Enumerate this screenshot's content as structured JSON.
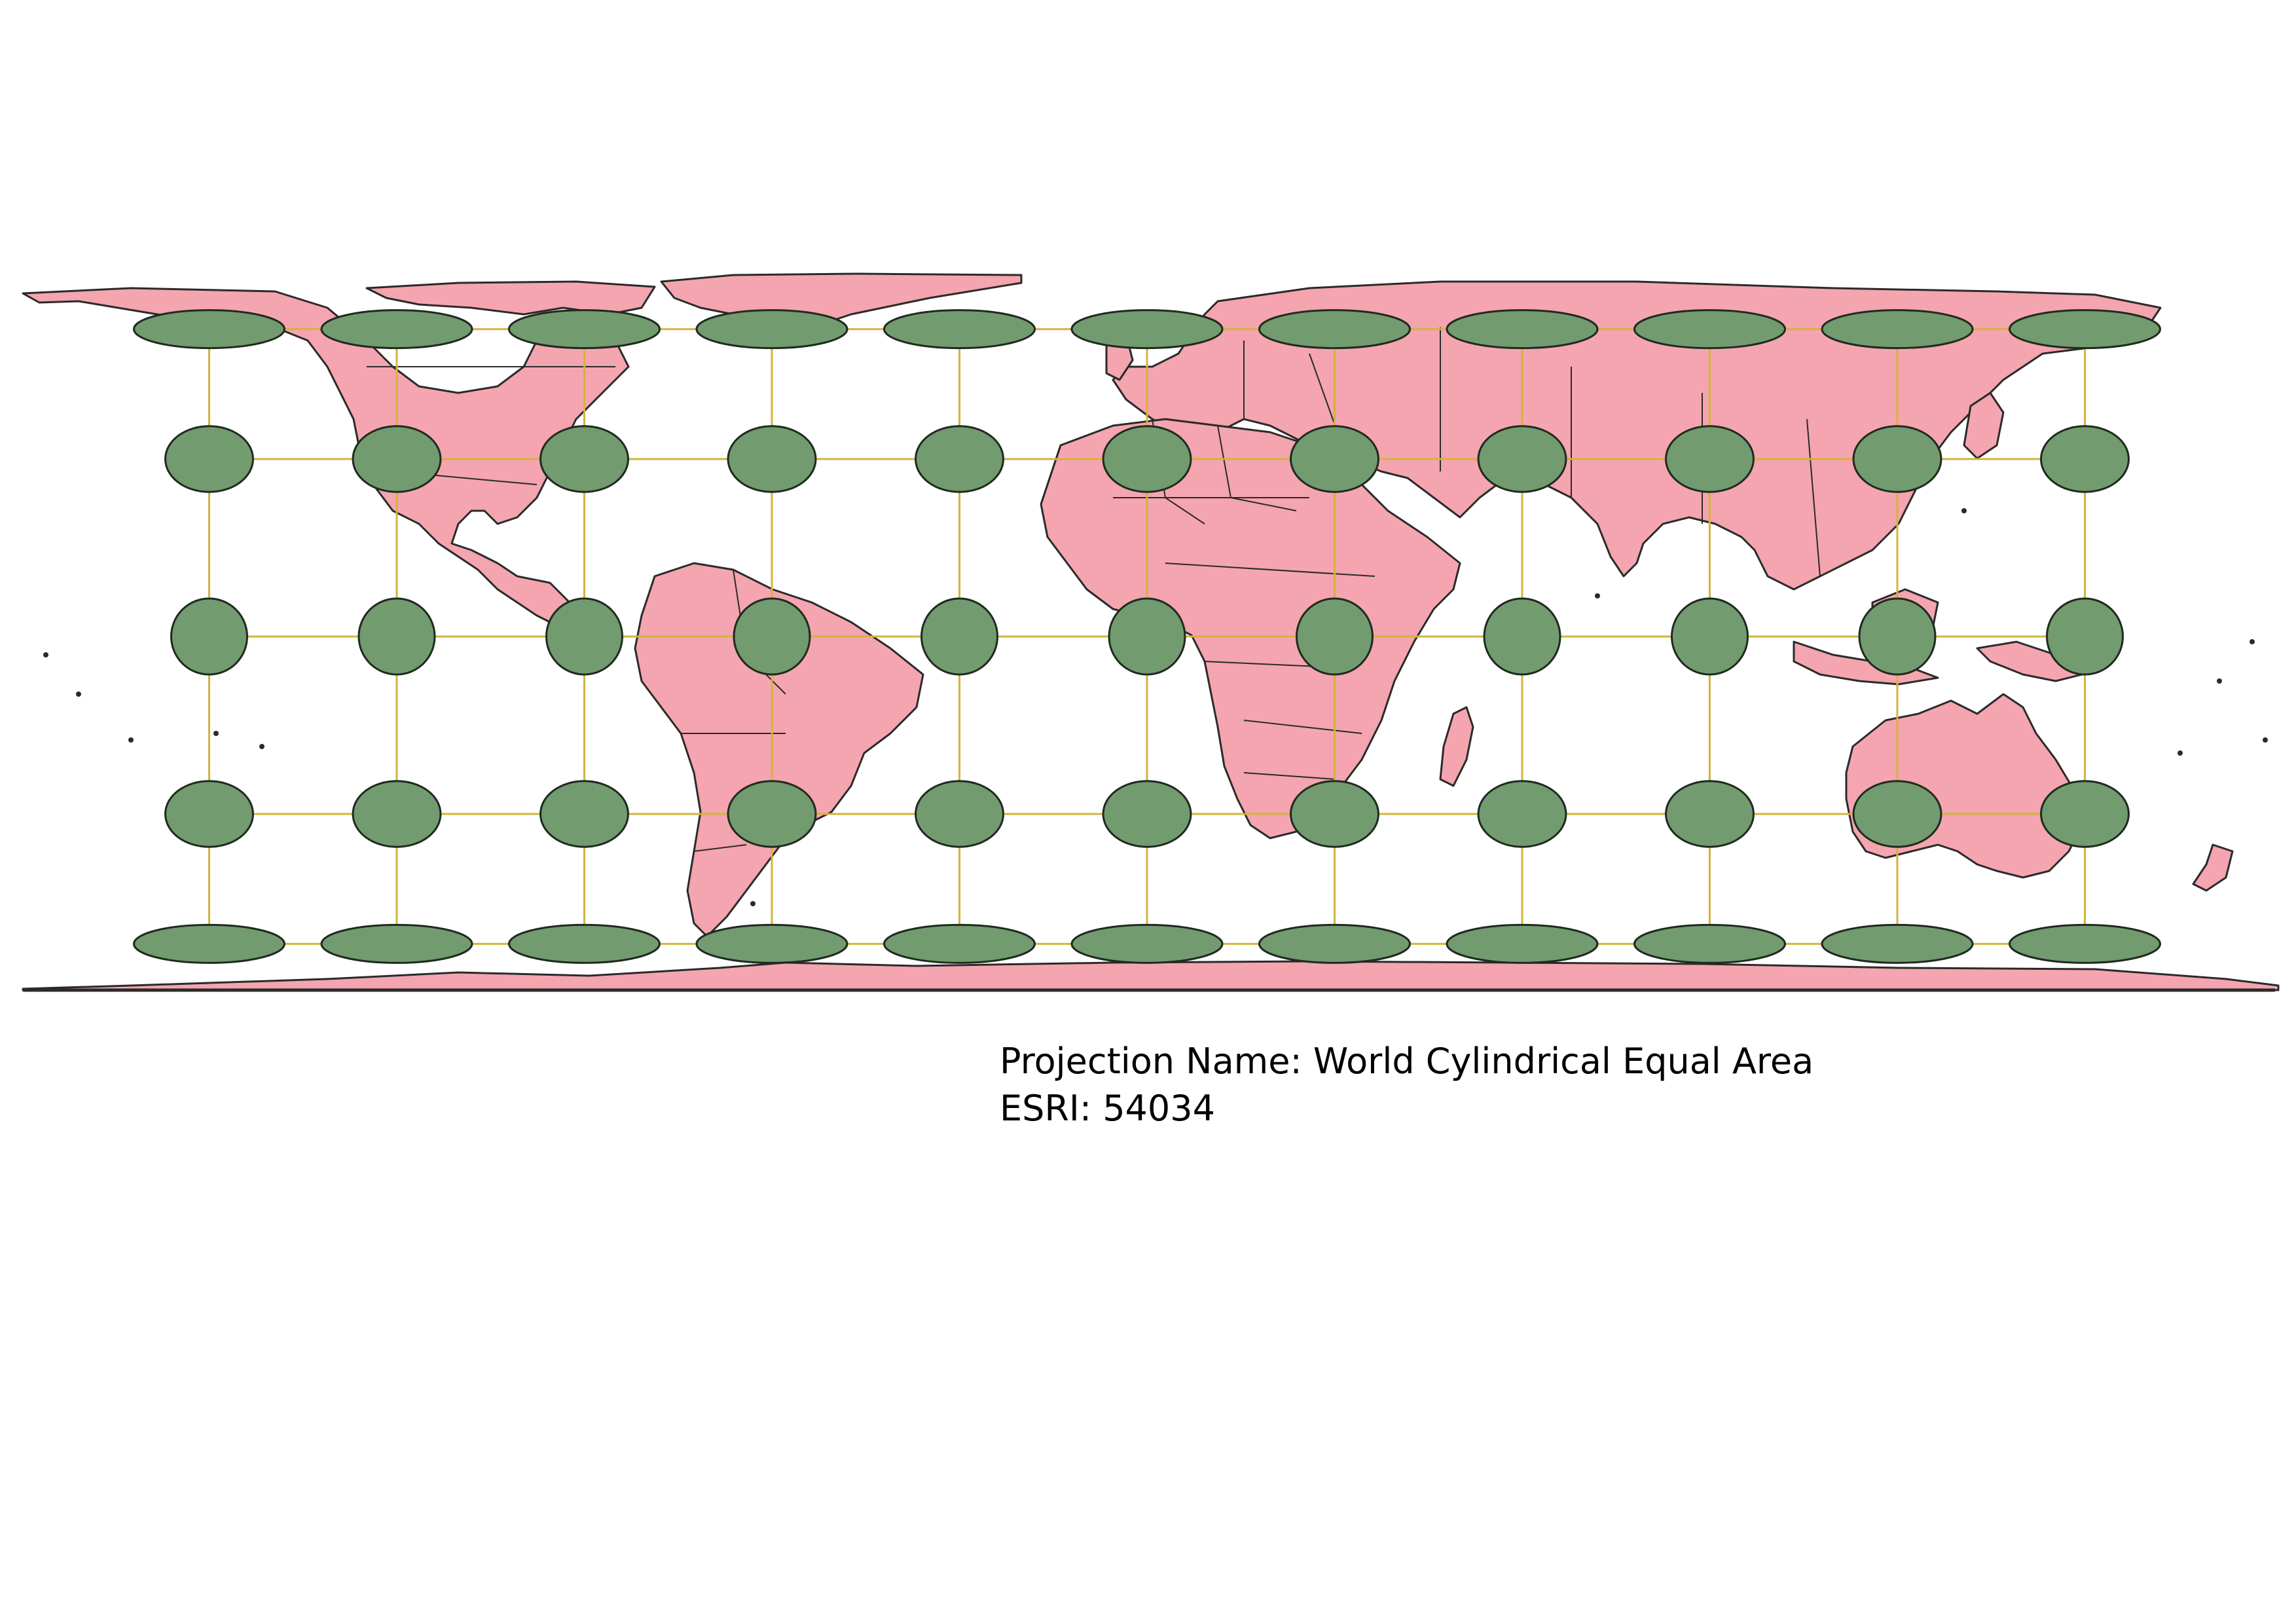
{
  "caption": {
    "projection_line": "Projection Name: World Cylindrical Equal Area",
    "esri_line": "ESRI: 54034"
  },
  "map": {
    "projection": "World Cylindrical Equal Area",
    "esri_code": "54034",
    "graticule": {
      "meridians_deg": [
        -150,
        -120,
        -90,
        -60,
        -30,
        0,
        30,
        60,
        90,
        120,
        150
      ],
      "parallels_deg": [
        60,
        30,
        0,
        -30,
        -60
      ]
    },
    "tissot_indicatrix": {
      "rows_deg": [
        60,
        30,
        0,
        -30,
        -60
      ],
      "columns_deg": [
        -150,
        -120,
        -90,
        -60,
        -30,
        0,
        30,
        60,
        90,
        120,
        150
      ],
      "note_color": "#729b6f"
    },
    "colors": {
      "land": "#f4a5af",
      "outline": "#2a2a2a",
      "graticule": "#d4b43c",
      "indicatrix": "#729b6f",
      "background": "#ffffff"
    }
  }
}
